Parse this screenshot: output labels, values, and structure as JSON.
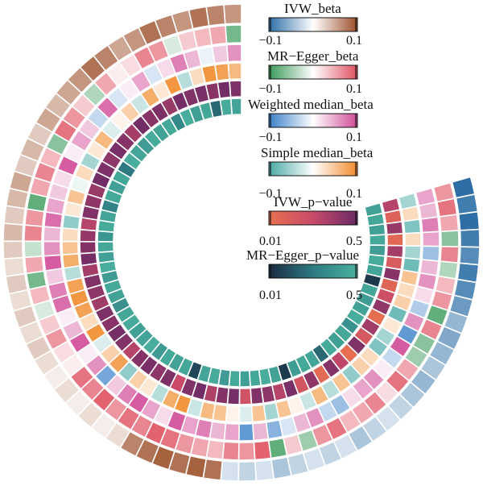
{
  "chart_data": {
    "type": "heatmap",
    "title": "",
    "layout": "circular",
    "ring_order": "outer-to-inner",
    "rings": [
      {
        "name": "IVW_beta",
        "colormap": [
          "#2d6ea6",
          "#ffffff",
          "#9c4f2a"
        ],
        "range": [
          -0.1,
          0.1
        ],
        "tick_labels": [
          "−0.1",
          "0.1"
        ],
        "values": [
          0.06,
          0.07,
          0.08,
          0.06,
          0.07,
          0.08,
          0.06,
          0.05,
          0.07,
          0.08,
          0.06,
          0.05,
          0.04,
          0.05,
          0.03,
          0.04,
          0.03,
          0.05,
          0.04,
          0.03,
          0.04,
          0.03,
          0.02,
          0.03,
          0.02,
          0.03,
          0.02,
          0.03,
          0.02,
          0.01,
          0.02,
          0.01,
          0.02,
          0.01,
          0.02,
          0.07,
          0.08,
          0.09,
          0.08,
          0.09,
          0.08,
          -0.02,
          -0.03,
          -0.02,
          -0.04,
          -0.03,
          -0.02,
          -0.03,
          -0.02,
          -0.04,
          -0.03,
          -0.02,
          -0.03,
          -0.04,
          -0.05,
          -0.04,
          -0.05,
          -0.06,
          -0.05,
          -0.07,
          -0.08,
          -0.09,
          -0.08,
          -0.09,
          -0.1,
          -0.09,
          -0.1
        ]
      },
      {
        "name": "MR−Egger_beta",
        "colormap": [
          "#3a9a5a",
          "#ffffff",
          "#e05060"
        ],
        "range": [
          -0.1,
          0.1
        ],
        "tick_labels": [
          "−0.1",
          "0.1"
        ],
        "values": [
          -0.07,
          0.05,
          0.04,
          0.03,
          -0.02,
          0.06,
          0.07,
          0.02,
          0.01,
          0.05,
          -0.04,
          0.03,
          0.06,
          0.08,
          -0.06,
          0.04,
          0.07,
          0.05,
          -0.08,
          0.06,
          0.07,
          -0.03,
          0.05,
          -0.07,
          0.04,
          -0.02,
          0.03,
          0.06,
          0.02,
          0.01,
          0.08,
          0.07,
          0.09,
          0.06,
          0.08,
          0.07,
          0.09,
          0.08,
          0.06,
          0.05,
          0.04,
          0.07,
          0.06,
          0.09,
          -0.08,
          0.03,
          -0.05,
          0.06,
          0.08,
          0.04,
          0.05,
          0.07,
          0.02,
          0.08,
          0.05,
          -0.05,
          -0.06,
          0.07,
          -0.08,
          0.06,
          0.04,
          -0.04,
          0.07,
          -0.06,
          0.05,
          0.08,
          0.06
        ]
      },
      {
        "name": "Weighted median_beta",
        "colormap": [
          "#3a7fc8",
          "#ffffff",
          "#d04a96"
        ],
        "range": [
          -0.1,
          0.1
        ],
        "tick_labels": [
          "−0.1",
          "0.1"
        ],
        "values": [
          0.06,
          0.03,
          -0.01,
          0.04,
          0.07,
          0.02,
          -0.02,
          0.05,
          0.01,
          -0.02,
          0.08,
          -0.03,
          0.03,
          0.05,
          0.01,
          0.09,
          0.02,
          0.03,
          0.05,
          0.08,
          0.04,
          0.06,
          0.09,
          0.03,
          0.07,
          0.08,
          0.01,
          0.04,
          0.09,
          0.01,
          0.06,
          -0.07,
          0.03,
          0.07,
          0.09,
          0.05,
          0.02,
          0.09,
          0.05,
          0.07,
          0.04,
          0.05,
          -0.08,
          0.04,
          -0.06,
          -0.02,
          0.04,
          0.06,
          -0.03,
          -0.05,
          0.02,
          0.05,
          0.06,
          0.01,
          -0.03,
          0.09,
          -0.08,
          0.06,
          -0.04,
          0.02,
          0.06,
          0.04,
          -0.05,
          0.05,
          0.07,
          0.04,
          0.05
        ]
      },
      {
        "name": "Simple median_beta",
        "colormap": [
          "#4aaaa6",
          "#ffffff",
          "#f08a2a"
        ],
        "range": [
          -0.1,
          0.1
        ],
        "tick_labels": [
          "−0.1",
          "0.1"
        ],
        "values": [
          0.06,
          0.08,
          0.09,
          0.03,
          -0.04,
          0.09,
          0.02,
          0.07,
          -0.03,
          0.04,
          0.01,
          -0.02,
          0.06,
          0.02,
          -0.05,
          0.03,
          -0.01,
          0.05,
          0.02,
          -0.06,
          0.03,
          0.05,
          0.07,
          -0.04,
          0.08,
          0.09,
          0.08,
          0.03,
          0.09,
          -0.02,
          0.04,
          0.08,
          -0.06,
          0.04,
          0.02,
          -0.04,
          0.07,
          0.09,
          -0.03,
          0.06,
          0.05,
          0.01,
          -0.02,
          0.05,
          -0.05,
          0.05,
          0.01,
          -0.03,
          0.06,
          -0.04,
          0.05,
          -0.06,
          0.04,
          0.03,
          -0.07,
          -0.05,
          0.02,
          -0.08,
          0.04,
          0.03,
          0.05,
          -0.08,
          -0.05,
          0.03,
          -0.07,
          0.03,
          -0.05
        ]
      },
      {
        "name": "IVW_p−value",
        "colormap": [
          "#e87050",
          "#c84a6a",
          "#6a2a66"
        ],
        "range": [
          0.01,
          0.5
        ],
        "tick_labels": [
          "0.01",
          "0.5"
        ],
        "values": [
          0.45,
          0.48,
          0.42,
          0.46,
          0.44,
          0.47,
          0.38,
          0.45,
          0.42,
          0.48,
          0.35,
          0.43,
          0.46,
          0.41,
          0.45,
          0.48,
          0.38,
          0.4,
          0.44,
          0.3,
          0.39,
          0.43,
          0.47,
          0.35,
          0.44,
          0.41,
          0.36,
          0.45,
          0.42,
          0.47,
          0.44,
          0.3,
          0.43,
          0.46,
          0.41,
          0.45,
          0.25,
          0.44,
          0.48,
          0.32,
          0.43,
          0.47,
          0.2,
          0.44,
          0.41,
          0.3,
          0.46,
          0.18,
          0.4,
          0.05,
          0.43,
          0.28,
          0.02,
          0.44,
          0.16,
          0.36,
          0.03,
          0.4,
          0.22,
          0.08,
          0.42,
          0.14,
          0.35,
          0.06,
          0.38,
          0.1,
          0.3
        ]
      },
      {
        "name": "MR−Egger_p−value",
        "colormap": [
          "#1a2a40",
          "#2e7a82",
          "#4ab29e"
        ],
        "range": [
          0.01,
          0.5
        ],
        "tick_labels": [
          "0.01",
          "0.5"
        ],
        "values": [
          0.44,
          0.47,
          0.2,
          0.45,
          0.42,
          0.48,
          0.32,
          0.46,
          0.43,
          0.47,
          0.4,
          0.44,
          0.48,
          0.25,
          0.45,
          0.42,
          0.46,
          0.3,
          0.44,
          0.47,
          0.38,
          0.45,
          0.42,
          0.48,
          0.4,
          0.46,
          0.43,
          0.35,
          0.45,
          0.47,
          0.42,
          0.44,
          0.48,
          0.4,
          0.46,
          0.43,
          0.45,
          0.1,
          0.44,
          0.47,
          0.4,
          0.46,
          0.42,
          0.45,
          0.48,
          0.43,
          0.06,
          0.41,
          0.46,
          0.44,
          0.2,
          0.47,
          0.42,
          0.45,
          0.36,
          0.48,
          0.43,
          0.4,
          0.45,
          0.05,
          0.44,
          0.47,
          0.41,
          0.46,
          0.42,
          0.45,
          0.43
        ]
      }
    ]
  }
}
